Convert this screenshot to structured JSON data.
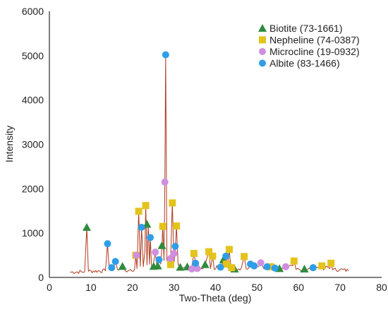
{
  "chart_data": {
    "type": "line",
    "xlabel": "Two-Theta (deg)",
    "ylabel": "Intensity",
    "xlim": [
      0,
      80
    ],
    "ylim": [
      0,
      6000
    ],
    "xticks": [
      0,
      10,
      20,
      30,
      40,
      50,
      60,
      70,
      80
    ],
    "yticks": [
      0,
      1000,
      2000,
      3000,
      4000,
      5000,
      6000
    ],
    "grid": false,
    "legend_position": "top-right",
    "line_color": "#b03a20",
    "pattern": [
      [
        5.0,
        120
      ],
      [
        8.5,
        130
      ],
      [
        9.0,
        1130
      ],
      [
        9.4,
        140
      ],
      [
        13.5,
        150
      ],
      [
        14.0,
        760
      ],
      [
        14.4,
        180
      ],
      [
        14.8,
        230
      ],
      [
        15.3,
        170
      ],
      [
        15.9,
        360
      ],
      [
        16.4,
        180
      ],
      [
        17.6,
        250
      ],
      [
        18.3,
        150
      ],
      [
        20.5,
        170
      ],
      [
        20.8,
        500
      ],
      [
        21.1,
        200
      ],
      [
        21.5,
        1490
      ],
      [
        21.9,
        250
      ],
      [
        22.2,
        1130
      ],
      [
        22.6,
        240
      ],
      [
        23.0,
        600
      ],
      [
        23.2,
        1620
      ],
      [
        23.5,
        280
      ],
      [
        23.8,
        1200
      ],
      [
        24.1,
        300
      ],
      [
        24.3,
        900
      ],
      [
        24.6,
        250
      ],
      [
        25.0,
        280
      ],
      [
        25.5,
        570
      ],
      [
        25.9,
        260
      ],
      [
        26.4,
        470
      ],
      [
        26.8,
        300
      ],
      [
        27.1,
        720
      ],
      [
        27.3,
        1150
      ],
      [
        27.6,
        380
      ],
      [
        27.8,
        2150
      ],
      [
        28.0,
        5020
      ],
      [
        28.3,
        400
      ],
      [
        28.8,
        270
      ],
      [
        29.2,
        430
      ],
      [
        29.6,
        1680
      ],
      [
        30.0,
        330
      ],
      [
        30.3,
        600
      ],
      [
        30.6,
        1160
      ],
      [
        31.0,
        280
      ],
      [
        32.3,
        220
      ],
      [
        33.3,
        230
      ],
      [
        34.2,
        200
      ],
      [
        34.8,
        540
      ],
      [
        35.2,
        340
      ],
      [
        35.6,
        190
      ],
      [
        36.6,
        200
      ],
      [
        37.7,
        360
      ],
      [
        38.4,
        580
      ],
      [
        38.8,
        200
      ],
      [
        39.3,
        480
      ],
      [
        39.7,
        180
      ],
      [
        41.8,
        400
      ],
      [
        42.2,
        240
      ],
      [
        42.6,
        480
      ],
      [
        43.0,
        210
      ],
      [
        43.3,
        630
      ],
      [
        43.7,
        230
      ],
      [
        44.7,
        180
      ],
      [
        46.2,
        210
      ],
      [
        46.9,
        470
      ],
      [
        47.4,
        190
      ],
      [
        48.4,
        300
      ],
      [
        49.3,
        260
      ],
      [
        50.2,
        240
      ],
      [
        51.0,
        320
      ],
      [
        51.7,
        190
      ],
      [
        53.3,
        240
      ],
      [
        54.2,
        230
      ],
      [
        55.3,
        190
      ],
      [
        57.1,
        230
      ],
      [
        58.9,
        370
      ],
      [
        59.4,
        180
      ],
      [
        61.5,
        170
      ],
      [
        63.5,
        200
      ],
      [
        65.6,
        250
      ],
      [
        66.0,
        170
      ],
      [
        67.8,
        320
      ],
      [
        68.2,
        170
      ],
      [
        70.0,
        180
      ],
      [
        72.0,
        150
      ]
    ],
    "series": [
      {
        "name": "Biotite (73-1661)",
        "marker": "triangle",
        "color": "#2e8b3d",
        "points": [
          [
            9.0,
            1130
          ],
          [
            17.6,
            250
          ],
          [
            23.5,
            1200
          ],
          [
            25.1,
            250
          ],
          [
            26.1,
            260
          ],
          [
            27.1,
            720
          ],
          [
            31.5,
            230
          ],
          [
            33.2,
            240
          ],
          [
            37.5,
            290
          ],
          [
            41.9,
            400
          ],
          [
            44.6,
            190
          ],
          [
            55.4,
            200
          ],
          [
            61.4,
            190
          ]
        ]
      },
      {
        "name": "Nepheline (74-0387)",
        "marker": "square",
        "color": "#e3c31c",
        "points": [
          [
            20.8,
            500
          ],
          [
            21.5,
            1490
          ],
          [
            23.2,
            1620
          ],
          [
            27.3,
            1150
          ],
          [
            29.2,
            290
          ],
          [
            29.6,
            1680
          ],
          [
            30.6,
            1160
          ],
          [
            34.8,
            540
          ],
          [
            38.4,
            580
          ],
          [
            39.3,
            480
          ],
          [
            42.6,
            300
          ],
          [
            43.3,
            630
          ],
          [
            43.9,
            220
          ],
          [
            46.9,
            470
          ],
          [
            53.3,
            240
          ],
          [
            58.9,
            370
          ],
          [
            65.6,
            260
          ],
          [
            67.8,
            320
          ]
        ]
      },
      {
        "name": "Microcline (19-0932)",
        "marker": "circle",
        "color": "#cf8fe0",
        "points": [
          [
            21.0,
            500
          ],
          [
            25.5,
            570
          ],
          [
            27.8,
            2150
          ],
          [
            29.2,
            430
          ],
          [
            30.0,
            540
          ],
          [
            34.3,
            190
          ],
          [
            35.6,
            200
          ],
          [
            50.9,
            330
          ],
          [
            56.9,
            240
          ]
        ]
      },
      {
        "name": "Albite (83-1466)",
        "marker": "circle",
        "color": "#2f9ee8",
        "points": [
          [
            14.0,
            760
          ],
          [
            15.0,
            220
          ],
          [
            15.9,
            360
          ],
          [
            22.2,
            1130
          ],
          [
            24.3,
            900
          ],
          [
            26.4,
            400
          ],
          [
            28.0,
            5020
          ],
          [
            30.3,
            700
          ],
          [
            35.2,
            320
          ],
          [
            41.2,
            230
          ],
          [
            42.5,
            480
          ],
          [
            48.4,
            300
          ],
          [
            49.3,
            260
          ],
          [
            52.4,
            240
          ],
          [
            54.3,
            210
          ],
          [
            63.5,
            220
          ]
        ]
      }
    ]
  }
}
